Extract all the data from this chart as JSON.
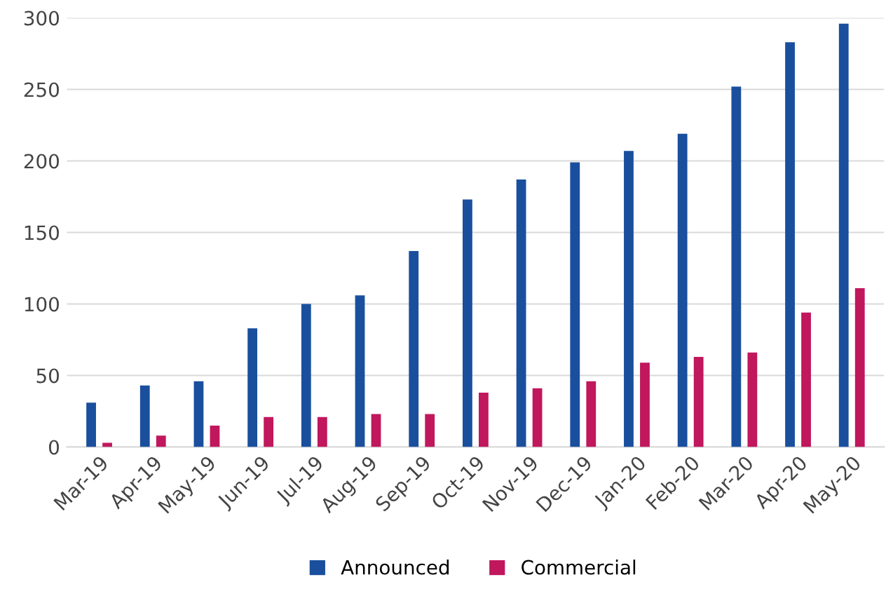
{
  "chart_data": {
    "type": "bar",
    "categories": [
      "Mar-19",
      "Apr-19",
      "May-19",
      "Jun-19",
      "Jul-19",
      "Aug-19",
      "Sep-19",
      "Oct-19",
      "Nov-19",
      "Dec-19",
      "Jan-20",
      "Feb-20",
      "Mar-20",
      "Apr-20",
      "May-20"
    ],
    "series": [
      {
        "name": "Announced",
        "color": "#1a4f9e",
        "values": [
          31,
          43,
          46,
          83,
          100,
          106,
          137,
          173,
          187,
          199,
          207,
          219,
          252,
          283,
          296
        ]
      },
      {
        "name": "Commercial",
        "color": "#c0175d",
        "values": [
          3,
          8,
          15,
          21,
          21,
          23,
          23,
          38,
          41,
          46,
          59,
          63,
          66,
          94,
          111
        ]
      }
    ],
    "ylim": [
      0,
      300
    ],
    "yticks": [
      0,
      50,
      100,
      150,
      200,
      250,
      300
    ],
    "grid": "y",
    "legend": "bottom"
  }
}
